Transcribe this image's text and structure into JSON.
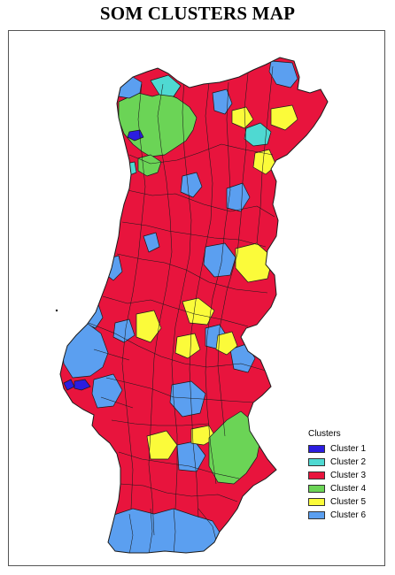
{
  "title": "SOM CLUSTERS MAP",
  "legend": {
    "title": "Clusters",
    "items": [
      {
        "label": "Cluster 1",
        "color": "#2b1de0"
      },
      {
        "label": "Cluster 2",
        "color": "#4fd9d2"
      },
      {
        "label": "Cluster 3",
        "color": "#e8143d"
      },
      {
        "label": "Cluster 4",
        "color": "#6bd456"
      },
      {
        "label": "Cluster 5",
        "color": "#fbfb3a"
      },
      {
        "label": "Cluster 6",
        "color": "#5b9ff0"
      }
    ]
  },
  "colors": {
    "border": "#1b1b1b",
    "background": "#ffffff"
  }
}
